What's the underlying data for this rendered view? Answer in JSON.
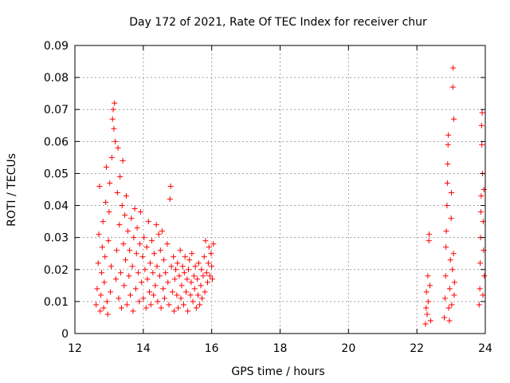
{
  "chart_data": {
    "type": "scatter",
    "title": "Day 172 of 2021, Rate Of TEC Index for receiver chur",
    "xlabel": "GPS time / hours",
    "ylabel": "ROTI / TECUs",
    "xlim": [
      12,
      24
    ],
    "ylim": [
      0,
      0.09
    ],
    "xticks": [
      12,
      14,
      16,
      18,
      20,
      22,
      24
    ],
    "xtick_labels": [
      "12",
      "14",
      "16",
      "18",
      "20",
      "22",
      "24"
    ],
    "yticks": [
      0,
      0.01,
      0.02,
      0.03,
      0.04,
      0.05,
      0.06,
      0.07,
      0.08,
      0.09
    ],
    "ytick_labels": [
      "0",
      "0.01",
      "0.02",
      "0.03",
      "0.04",
      "0.05",
      "0.06",
      "0.07",
      "0.08",
      "0.09"
    ],
    "grid": true,
    "marker": "+",
    "color": "#ff0000",
    "series": [
      {
        "name": "ROTI",
        "points": [
          [
            12.62,
            0.009
          ],
          [
            12.65,
            0.014
          ],
          [
            12.68,
            0.022
          ],
          [
            12.7,
            0.031
          ],
          [
            12.72,
            0.046
          ],
          [
            12.74,
            0.007
          ],
          [
            12.76,
            0.012
          ],
          [
            12.78,
            0.019
          ],
          [
            12.8,
            0.027
          ],
          [
            12.82,
            0.035
          ],
          [
            12.84,
            0.008
          ],
          [
            12.86,
            0.016
          ],
          [
            12.88,
            0.024
          ],
          [
            12.9,
            0.041
          ],
          [
            12.92,
            0.052
          ],
          [
            12.94,
            0.01
          ],
          [
            12.96,
            0.006
          ],
          [
            12.98,
            0.029
          ],
          [
            13.0,
            0.038
          ],
          [
            13.02,
            0.047
          ],
          [
            13.04,
            0.013
          ],
          [
            13.06,
            0.021
          ],
          [
            13.08,
            0.055
          ],
          [
            13.1,
            0.067
          ],
          [
            13.12,
            0.07
          ],
          [
            13.14,
            0.064
          ],
          [
            13.16,
            0.072
          ],
          [
            13.18,
            0.06
          ],
          [
            13.2,
            0.017
          ],
          [
            13.22,
            0.026
          ],
          [
            13.24,
            0.044
          ],
          [
            13.26,
            0.058
          ],
          [
            13.28,
            0.011
          ],
          [
            13.3,
            0.034
          ],
          [
            13.32,
            0.049
          ],
          [
            13.34,
            0.019
          ],
          [
            13.36,
            0.008
          ],
          [
            13.38,
            0.04
          ],
          [
            13.4,
            0.054
          ],
          [
            13.42,
            0.028
          ],
          [
            13.44,
            0.015
          ],
          [
            13.46,
            0.037
          ],
          [
            13.48,
            0.023
          ],
          [
            13.5,
            0.043
          ],
          [
            13.52,
            0.009
          ],
          [
            13.55,
            0.032
          ],
          [
            13.58,
            0.018
          ],
          [
            13.6,
            0.026
          ],
          [
            13.62,
            0.012
          ],
          [
            13.65,
            0.036
          ],
          [
            13.68,
            0.021
          ],
          [
            13.7,
            0.007
          ],
          [
            13.72,
            0.03
          ],
          [
            13.75,
            0.039
          ],
          [
            13.78,
            0.014
          ],
          [
            13.8,
            0.025
          ],
          [
            13.82,
            0.033
          ],
          [
            13.85,
            0.019
          ],
          [
            13.88,
            0.01
          ],
          [
            13.9,
            0.028
          ],
          [
            13.92,
            0.038
          ],
          [
            13.95,
            0.016
          ],
          [
            13.98,
            0.024
          ],
          [
            14.0,
            0.011
          ],
          [
            14.02,
            0.03
          ],
          [
            14.05,
            0.02
          ],
          [
            14.08,
            0.008
          ],
          [
            14.1,
            0.027
          ],
          [
            14.12,
            0.017
          ],
          [
            14.15,
            0.035
          ],
          [
            14.18,
            0.013
          ],
          [
            14.2,
            0.022
          ],
          [
            14.22,
            0.009
          ],
          [
            14.25,
            0.029
          ],
          [
            14.28,
            0.019
          ],
          [
            14.3,
            0.012
          ],
          [
            14.32,
            0.025
          ],
          [
            14.35,
            0.015
          ],
          [
            14.38,
            0.034
          ],
          [
            14.4,
            0.021
          ],
          [
            14.42,
            0.01
          ],
          [
            14.45,
            0.031
          ],
          [
            14.48,
            0.018
          ],
          [
            14.5,
            0.026
          ],
          [
            14.52,
            0.008
          ],
          [
            14.55,
            0.032
          ],
          [
            14.58,
            0.014
          ],
          [
            14.6,
            0.023
          ],
          [
            14.62,
            0.011
          ],
          [
            14.65,
            0.019
          ],
          [
            14.7,
            0.028
          ],
          [
            14.72,
            0.016
          ],
          [
            14.75,
            0.009
          ],
          [
            14.78,
            0.042
          ],
          [
            14.8,
            0.046
          ],
          [
            14.82,
            0.021
          ],
          [
            14.85,
            0.013
          ],
          [
            14.88,
            0.024
          ],
          [
            14.9,
            0.007
          ],
          [
            14.92,
            0.017
          ],
          [
            14.95,
            0.02
          ],
          [
            14.98,
            0.012
          ],
          [
            15.0,
            0.022
          ],
          [
            15.02,
            0.008
          ],
          [
            15.05,
            0.018
          ],
          [
            15.08,
            0.026
          ],
          [
            15.1,
            0.011
          ],
          [
            15.12,
            0.015
          ],
          [
            15.15,
            0.021
          ],
          [
            15.18,
            0.009
          ],
          [
            15.2,
            0.019
          ],
          [
            15.22,
            0.024
          ],
          [
            15.25,
            0.013
          ],
          [
            15.28,
            0.017
          ],
          [
            15.3,
            0.007
          ],
          [
            15.32,
            0.02
          ],
          [
            15.35,
            0.023
          ],
          [
            15.38,
            0.012
          ],
          [
            15.4,
            0.016
          ],
          [
            15.42,
            0.025
          ],
          [
            15.45,
            0.01
          ],
          [
            15.48,
            0.018
          ],
          [
            15.5,
            0.014
          ],
          [
            15.52,
            0.021
          ],
          [
            15.55,
            0.008
          ],
          [
            15.58,
            0.017
          ],
          [
            15.6,
            0.012
          ],
          [
            15.62,
            0.022
          ],
          [
            15.65,
            0.009
          ],
          [
            15.68,
            0.015
          ],
          [
            15.7,
            0.02
          ],
          [
            15.72,
            0.011
          ],
          [
            15.75,
            0.018
          ],
          [
            15.78,
            0.024
          ],
          [
            15.8,
            0.013
          ],
          [
            15.82,
            0.029
          ],
          [
            15.85,
            0.019
          ],
          [
            15.88,
            0.016
          ],
          [
            15.9,
            0.022
          ],
          [
            15.92,
            0.027
          ],
          [
            15.95,
            0.018
          ],
          [
            15.98,
            0.025
          ],
          [
            16.0,
            0.021
          ],
          [
            16.02,
            0.017
          ],
          [
            16.05,
            0.028
          ],
          [
            22.25,
            0.003
          ],
          [
            22.27,
            0.008
          ],
          [
            22.28,
            0.013
          ],
          [
            22.3,
            0.006
          ],
          [
            22.32,
            0.018
          ],
          [
            22.33,
            0.01
          ],
          [
            22.35,
            0.029
          ],
          [
            22.36,
            0.031
          ],
          [
            22.38,
            0.015
          ],
          [
            22.4,
            0.004
          ],
          [
            22.8,
            0.005
          ],
          [
            22.82,
            0.011
          ],
          [
            22.84,
            0.018
          ],
          [
            22.85,
            0.027
          ],
          [
            22.86,
            0.032
          ],
          [
            22.88,
            0.04
          ],
          [
            22.89,
            0.047
          ],
          [
            22.9,
            0.053
          ],
          [
            22.91,
            0.059
          ],
          [
            22.92,
            0.062
          ],
          [
            22.93,
            0.008
          ],
          [
            22.95,
            0.004
          ],
          [
            22.96,
            0.014
          ],
          [
            22.98,
            0.023
          ],
          [
            23.0,
            0.036
          ],
          [
            23.01,
            0.044
          ],
          [
            23.02,
            0.009
          ],
          [
            23.04,
            0.02
          ],
          [
            23.05,
            0.077
          ],
          [
            23.06,
            0.083
          ],
          [
            23.07,
            0.025
          ],
          [
            23.08,
            0.067
          ],
          [
            23.09,
            0.012
          ],
          [
            23.1,
            0.016
          ],
          [
            23.82,
            0.009
          ],
          [
            23.84,
            0.014
          ],
          [
            23.85,
            0.022
          ],
          [
            23.86,
            0.03
          ],
          [
            23.87,
            0.038
          ],
          [
            23.88,
            0.043
          ],
          [
            23.89,
            0.065
          ],
          [
            23.9,
            0.059
          ],
          [
            23.91,
            0.069
          ],
          [
            23.92,
            0.05
          ],
          [
            23.93,
            0.012
          ],
          [
            23.94,
            0.035
          ],
          [
            23.95,
            0.026
          ],
          [
            23.96,
            0.045
          ],
          [
            23.97,
            0.018
          ]
        ]
      }
    ]
  }
}
